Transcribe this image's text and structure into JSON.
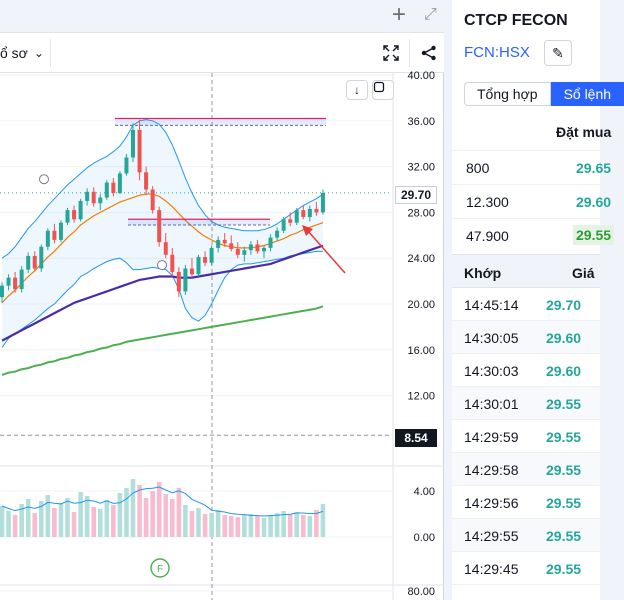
{
  "window": {
    "add_icon": "plus-icon",
    "expand_icon": "expand-icon"
  },
  "toolbar": {
    "timeframe_label": "ổ sơ",
    "fullscreen_icon": "fullscreen-icon",
    "share_icon": "share-icon"
  },
  "chart_controls": {
    "download_icon": "download-arrow-icon",
    "maximize_icon": "maximize-icon",
    "download_label": "↓"
  },
  "chart_data": {
    "type": "candlestick",
    "price_axis": {
      "ticks": [
        "40.00",
        "36.00",
        "32.00",
        "28.00",
        "24.00",
        "20.00",
        "16.00",
        "12.00",
        "8.54",
        "4.00",
        "0.00",
        "80.00"
      ],
      "range": [
        8.54,
        40.0
      ]
    },
    "current_price": "29.70",
    "marked_level": "8.54",
    "marker_label": "F",
    "colors": {
      "up": "#26a69a",
      "down": "#ef5350",
      "ma_fast": "#f57c00",
      "ma_mid": "#4a2ca8",
      "ma_slow": "#4caf50",
      "bollinger": "#2196f3",
      "volume_up": "#b2dfdb",
      "volume_down": "#f8bbd0",
      "resistance": "#e91e63",
      "arrow": "#e53935"
    },
    "series": [
      {
        "values": [
          [
            20.6,
            21.9,
            20.1,
            21.6
          ],
          [
            21.6,
            22.6,
            21.2,
            22.3
          ],
          [
            22.3,
            22.8,
            21.0,
            21.3
          ],
          [
            21.3,
            23.3,
            21.0,
            23.0
          ],
          [
            23.0,
            24.5,
            22.7,
            24.2
          ],
          [
            24.2,
            24.6,
            22.9,
            23.1
          ],
          [
            23.1,
            25.2,
            22.8,
            25.0
          ],
          [
            25.0,
            26.6,
            24.7,
            26.4
          ],
          [
            26.4,
            27.0,
            25.3,
            25.6
          ],
          [
            25.6,
            27.3,
            25.4,
            27.1
          ],
          [
            27.1,
            28.4,
            26.9,
            28.2
          ],
          [
            28.2,
            28.6,
            27.1,
            27.4
          ],
          [
            27.4,
            29.2,
            27.2,
            29.0
          ],
          [
            29.0,
            30.1,
            28.6,
            29.8
          ],
          [
            29.8,
            30.2,
            28.5,
            28.8
          ],
          [
            28.8,
            29.6,
            28.2,
            29.3
          ],
          [
            29.3,
            30.8,
            29.1,
            30.6
          ],
          [
            30.6,
            31.0,
            29.4,
            29.7
          ],
          [
            29.7,
            31.6,
            29.6,
            31.4
          ],
          [
            31.4,
            33.1,
            31.2,
            32.8
          ],
          [
            32.8,
            35.8,
            32.4,
            35.2
          ],
          [
            35.2,
            36.1,
            30.8,
            31.5
          ],
          [
            31.5,
            32.0,
            29.5,
            30.0
          ],
          [
            30.0,
            30.3,
            27.9,
            28.2
          ],
          [
            28.2,
            28.5,
            25.0,
            25.4
          ],
          [
            25.4,
            26.2,
            24.0,
            24.3
          ],
          [
            24.3,
            24.9,
            22.4,
            22.8
          ],
          [
            22.8,
            23.2,
            20.6,
            21.1
          ],
          [
            21.1,
            23.4,
            20.8,
            23.1
          ],
          [
            23.1,
            24.0,
            22.3,
            22.6
          ],
          [
            22.6,
            24.3,
            22.4,
            24.1
          ],
          [
            24.1,
            24.6,
            23.3,
            23.6
          ],
          [
            23.6,
            25.1,
            23.4,
            24.9
          ],
          [
            24.9,
            25.9,
            24.5,
            25.6
          ],
          [
            25.6,
            26.2,
            25.0,
            25.3
          ],
          [
            25.3,
            26.0,
            24.6,
            24.8
          ],
          [
            24.8,
            25.4,
            24.0,
            24.3
          ],
          [
            24.3,
            25.0,
            23.7,
            24.7
          ],
          [
            24.7,
            25.5,
            24.3,
            25.2
          ],
          [
            25.2,
            25.6,
            24.4,
            24.6
          ],
          [
            24.6,
            25.1,
            24.0,
            24.9
          ],
          [
            24.9,
            26.1,
            24.6,
            25.8
          ],
          [
            25.8,
            26.7,
            25.5,
            26.4
          ],
          [
            26.4,
            27.6,
            26.2,
            27.4
          ],
          [
            27.4,
            28.0,
            26.8,
            27.1
          ],
          [
            27.1,
            28.4,
            26.9,
            28.2
          ],
          [
            28.2,
            28.6,
            27.4,
            27.6
          ],
          [
            27.6,
            28.6,
            27.2,
            28.3
          ],
          [
            28.3,
            28.9,
            27.7,
            28.0
          ],
          [
            28.0,
            30.0,
            27.8,
            29.7
          ]
        ]
      },
      {
        "values": [
          20.1,
          20.7,
          21.2,
          21.8,
          22.4,
          22.9,
          23.5,
          24.1,
          24.6,
          25.2,
          25.8,
          26.3,
          26.9,
          27.3,
          27.7,
          28.0,
          28.3,
          28.6,
          28.9,
          29.1,
          29.3,
          29.5,
          29.6,
          29.6,
          29.4,
          29.0,
          28.5,
          27.9,
          27.3,
          26.8,
          26.3,
          25.9,
          25.6,
          25.3,
          25.1,
          25.0,
          24.9,
          24.9,
          24.9,
          25.0,
          25.1,
          25.3,
          25.5,
          25.7,
          26.0,
          26.2,
          26.5,
          26.7,
          26.9,
          27.1
        ]
      },
      {
        "values": [
          16.8,
          17.1,
          17.4,
          17.7,
          18.0,
          18.3,
          18.6,
          18.9,
          19.2,
          19.5,
          19.8,
          20.1,
          20.3,
          20.5,
          20.7,
          20.9,
          21.1,
          21.3,
          21.5,
          21.7,
          21.9,
          22.1,
          22.2,
          22.3,
          22.4,
          22.4,
          22.4,
          22.3,
          22.3,
          22.3,
          22.4,
          22.5,
          22.6,
          22.7,
          22.8,
          22.9,
          23.0,
          23.1,
          23.2,
          23.3,
          23.4,
          23.5,
          23.7,
          23.9,
          24.1,
          24.3,
          24.5,
          24.7,
          24.9,
          25.1
        ]
      },
      {
        "values": [
          13.8,
          14.0,
          14.1,
          14.3,
          14.4,
          14.6,
          14.7,
          14.9,
          15.0,
          15.2,
          15.3,
          15.5,
          15.6,
          15.8,
          15.9,
          16.1,
          16.2,
          16.4,
          16.5,
          16.7,
          16.8,
          16.9,
          17.0,
          17.1,
          17.2,
          17.3,
          17.4,
          17.5,
          17.6,
          17.7,
          17.8,
          17.9,
          18.0,
          18.1,
          18.2,
          18.3,
          18.4,
          18.5,
          18.6,
          18.7,
          18.8,
          18.9,
          19.0,
          19.1,
          19.2,
          19.3,
          19.4,
          19.5,
          19.6,
          19.8
        ]
      },
      {
        "values": [
          3.1,
          2.6,
          2.2,
          3.3,
          3.8,
          2.4,
          3.6,
          4.2,
          2.9,
          3.4,
          3.9,
          2.5,
          4.5,
          4.1,
          3.0,
          2.8,
          3.7,
          3.2,
          4.4,
          4.9,
          5.8,
          5.2,
          3.9,
          4.6,
          5.5,
          4.3,
          3.8,
          4.9,
          3.2,
          2.6,
          2.9,
          2.3,
          2.4,
          2.7,
          2.2,
          2.1,
          2.0,
          2.2,
          2.3,
          2.1,
          1.9,
          2.2,
          2.4,
          2.6,
          2.3,
          2.5,
          2.2,
          2.1,
          2.7,
          3.3
        ]
      }
    ],
    "bollinger": {
      "upper": [
        24.0,
        24.4,
        25.0,
        25.8,
        26.6,
        27.2,
        27.9,
        28.6,
        29.2,
        29.8,
        30.4,
        30.9,
        31.4,
        31.9,
        32.3,
        32.6,
        32.9,
        33.3,
        33.8,
        34.6,
        35.6,
        36.0,
        36.1,
        36.0,
        35.7,
        35.0,
        33.9,
        32.5,
        31.0,
        29.7,
        28.6,
        27.8,
        27.2,
        26.9,
        26.7,
        26.6,
        26.5,
        26.4,
        26.4,
        26.4,
        26.5,
        26.7,
        27.0,
        27.4,
        27.8,
        28.2,
        28.6,
        28.9,
        29.2,
        29.6
      ],
      "lower": [
        16.2,
        17.0,
        17.4,
        17.8,
        18.2,
        18.6,
        19.1,
        19.6,
        20.0,
        20.6,
        21.2,
        21.7,
        22.4,
        22.7,
        23.1,
        23.4,
        23.7,
        23.9,
        24.0,
        23.6,
        23.0,
        23.0,
        23.1,
        23.2,
        23.1,
        23.0,
        22.5,
        21.3,
        19.6,
        18.8,
        18.5,
        19.0,
        20.0,
        21.2,
        22.3,
        23.0,
        23.4,
        23.5,
        23.5,
        23.6,
        23.7,
        23.8,
        23.9,
        24.0,
        24.2,
        24.3,
        24.4,
        24.5,
        24.6,
        24.6
      ]
    },
    "resistance_zones": [
      {
        "price_top": 36.2,
        "price_bottom": 35.6
      },
      {
        "price_top": 27.4,
        "price_bottom": 26.9
      }
    ]
  },
  "panel": {
    "symbol_name": "CTCP FECON",
    "symbol_code": "FCN:HSX",
    "edit_icon": "pencil-icon",
    "tabs": [
      {
        "label": "Tổng hợp"
      },
      {
        "label": "Sổ lệnh"
      }
    ],
    "orderbook_header": "Đặt mua",
    "orderbook": [
      {
        "volume": "800",
        "price": "29.65"
      },
      {
        "volume": "12.300",
        "price": "29.60"
      },
      {
        "volume": "47.900",
        "price": "29.55"
      }
    ],
    "matches_header": {
      "time": "Khớp",
      "price": "Giá"
    },
    "matches": [
      {
        "time": "14:45:14",
        "price": "29.70"
      },
      {
        "time": "14:30:05",
        "price": "29.60"
      },
      {
        "time": "14:30:03",
        "price": "29.60"
      },
      {
        "time": "14:30:01",
        "price": "29.55"
      },
      {
        "time": "14:29:59",
        "price": "29.55"
      },
      {
        "time": "14:29:58",
        "price": "29.55"
      },
      {
        "time": "14:29:56",
        "price": "29.55"
      },
      {
        "time": "14:29:55",
        "price": "29.55"
      },
      {
        "time": "14:29:45",
        "price": "29.55"
      }
    ]
  }
}
